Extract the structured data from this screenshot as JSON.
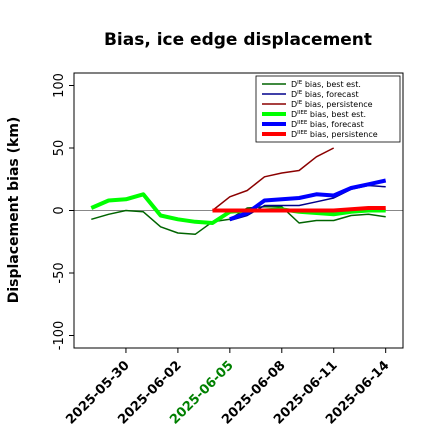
{
  "chart_data": {
    "type": "line",
    "title": "Bias, ice edge displacement",
    "ylabel": "Displacement bias (km)",
    "xlabel": "",
    "ylim": [
      -110,
      110
    ],
    "yticks": [
      -100,
      -50,
      0,
      50,
      100
    ],
    "xlim": [
      "2025-05-27",
      "2025-06-15"
    ],
    "xticks": [
      {
        "date": "2025-05-30",
        "label": "2025-05-30",
        "color": "#000000"
      },
      {
        "date": "2025-06-02",
        "label": "2025-06-02",
        "color": "#000000"
      },
      {
        "date": "2025-06-05",
        "label": "2025-06-05",
        "color": "#008000"
      },
      {
        "date": "2025-06-08",
        "label": "2025-06-08",
        "color": "#000000"
      },
      {
        "date": "2025-06-11",
        "label": "2025-06-11",
        "color": "#000000"
      },
      {
        "date": "2025-06-14",
        "label": "2025-06-14",
        "color": "#000000"
      }
    ],
    "zero_line": true,
    "grid": false,
    "legend_position": "top-right",
    "series": [
      {
        "name": "D^IE bias, best est.",
        "label_base": "D",
        "label_sup": "IE",
        "label_rest": " bias, best est.",
        "color": "#006400",
        "width": 1.5,
        "x": [
          "2025-05-28",
          "2025-05-29",
          "2025-05-30",
          "2025-05-31",
          "2025-06-01",
          "2025-06-02",
          "2025-06-03",
          "2025-06-04",
          "2025-06-05",
          "2025-06-06",
          "2025-06-07",
          "2025-06-08",
          "2025-06-09",
          "2025-06-10",
          "2025-06-11",
          "2025-06-12",
          "2025-06-13",
          "2025-06-14"
        ],
        "y": [
          -7,
          -3,
          0,
          -1,
          -13,
          -18,
          -19,
          -9,
          -7,
          2,
          3,
          3,
          -10,
          -8,
          -8,
          -4,
          -3,
          -5
        ]
      },
      {
        "name": "D^IE bias, forecast",
        "label_base": "D",
        "label_sup": "IE",
        "label_rest": " bias, forecast",
        "color": "#00008B",
        "width": 1.5,
        "x": [
          "2025-06-05",
          "2025-06-06",
          "2025-06-07",
          "2025-06-08",
          "2025-06-09",
          "2025-06-10",
          "2025-06-11",
          "2025-06-12",
          "2025-06-13",
          "2025-06-14"
        ],
        "y": [
          -8,
          -4,
          4,
          4,
          4,
          7,
          10,
          17,
          20,
          19
        ]
      },
      {
        "name": "D^IE bias, persistence",
        "label_base": "D",
        "label_sup": "IE",
        "label_rest": " bias, persistence",
        "color": "#8B0000",
        "width": 1.5,
        "x": [
          "2025-06-04",
          "2025-06-05",
          "2025-06-06",
          "2025-06-07",
          "2025-06-08",
          "2025-06-09",
          "2025-06-10",
          "2025-06-11"
        ],
        "y": [
          0,
          11,
          16,
          27,
          30,
          32,
          43,
          50
        ]
      },
      {
        "name": "D^IIEE bias, best est.",
        "label_base": "D",
        "label_sup": "IIEE",
        "label_rest": " bias, best est.",
        "color": "#00FF00",
        "width": 4,
        "x": [
          "2025-05-28",
          "2025-05-29",
          "2025-05-30",
          "2025-05-31",
          "2025-06-01",
          "2025-06-02",
          "2025-06-03",
          "2025-06-04",
          "2025-06-05",
          "2025-06-06",
          "2025-06-07",
          "2025-06-08",
          "2025-06-09",
          "2025-06-10",
          "2025-06-11",
          "2025-06-12",
          "2025-06-13",
          "2025-06-14"
        ],
        "y": [
          2,
          8,
          9,
          13,
          -4,
          -7,
          -9,
          -10,
          -1,
          0,
          0,
          1,
          -1,
          -2,
          -3,
          -1,
          0,
          0
        ]
      },
      {
        "name": "D^IIEE bias, forecast",
        "label_base": "D",
        "label_sup": "IIEE",
        "label_rest": " bias, forecast",
        "color": "#0000FF",
        "width": 4,
        "x": [
          "2025-06-05",
          "2025-06-06",
          "2025-06-07",
          "2025-06-08",
          "2025-06-09",
          "2025-06-10",
          "2025-06-11",
          "2025-06-12",
          "2025-06-13",
          "2025-06-14"
        ],
        "y": [
          -7,
          -2,
          8,
          9,
          10,
          13,
          12,
          18,
          21,
          24
        ]
      },
      {
        "name": "D^IIEE bias, persistence",
        "label_base": "D",
        "label_sup": "IIEE",
        "label_rest": " bias, persistence",
        "color": "#FF0000",
        "width": 4,
        "x": [
          "2025-06-04",
          "2025-06-05",
          "2025-06-06",
          "2025-06-07",
          "2025-06-08",
          "2025-06-09",
          "2025-06-10",
          "2025-06-11",
          "2025-06-12",
          "2025-06-13",
          "2025-06-14"
        ],
        "y": [
          0,
          0,
          0,
          0,
          0,
          0,
          0,
          0,
          1,
          2,
          2
        ]
      }
    ]
  }
}
